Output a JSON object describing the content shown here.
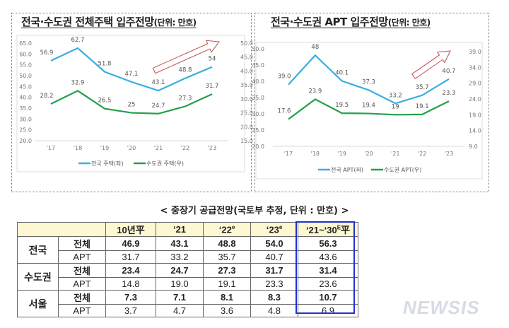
{
  "panels": [
    {
      "title": "전국·수도권 전체주택 입주전망",
      "unit": "(단위: 만호)"
    },
    {
      "title": "전국·수도권 APT 입주전망",
      "unit": "(단위: 만호)"
    }
  ],
  "chart_data": [
    {
      "type": "line",
      "categories": [
        "'17",
        "'18",
        "'19",
        "'20",
        "'21",
        "'22",
        "'23"
      ],
      "left_axis": {
        "ylim": [
          20,
          65
        ],
        "ticks": [
          "65.0",
          "60.0",
          "55.0",
          "50.0",
          "45.0",
          "40.0",
          "35.0",
          "30.0",
          "25.0",
          "20.0"
        ]
      },
      "right_axis": {
        "ylim": [
          15,
          50
        ],
        "ticks": [
          "50.0",
          "45.0",
          "40.0",
          "35.0",
          "30.0",
          "25.0",
          "20.0",
          "15.0"
        ]
      },
      "series": [
        {
          "name": "전국 주택(좌)",
          "axis": "left",
          "color": "#3aaee0",
          "values": [
            56.9,
            62.7,
            51.8,
            47.1,
            43.1,
            48.8,
            54
          ],
          "labels": [
            "56.9",
            "62.7",
            "51.8",
            "47.1",
            "43.1",
            "48.8",
            "54"
          ]
        },
        {
          "name": "수도권 주택(우)",
          "axis": "right",
          "color": "#22a04a",
          "values": [
            28.2,
            32.9,
            26.5,
            25,
            24.7,
            27.3,
            31.7
          ],
          "labels": [
            "28.2",
            "32.9",
            "26.5",
            "25",
            "24.7",
            "27.3",
            "31.7"
          ]
        }
      ],
      "legend": "bottom",
      "grid": false,
      "annotation": "upward-arrow"
    },
    {
      "type": "line",
      "categories": [
        "'17",
        "'18",
        "'19",
        "'20",
        "'21",
        "'22",
        "'23"
      ],
      "left_axis": {
        "ylim": [
          20,
          50
        ],
        "ticks": [
          "50.0",
          "45.0",
          "40.0",
          "35.0",
          "30.0",
          "25.0",
          "20.0"
        ]
      },
      "right_axis": {
        "ylim": [
          9,
          39
        ],
        "ticks": [
          "39.0",
          "34.0",
          "29.0",
          "24.0",
          "19.0",
          "14.0",
          "9.0"
        ]
      },
      "series": [
        {
          "name": "전국 APT(좌)",
          "axis": "left",
          "color": "#3aaee0",
          "values": [
            39.0,
            48,
            40.1,
            37.3,
            33.2,
            35.7,
            40.7
          ],
          "labels": [
            "39.0",
            "48",
            "40.1",
            "37.3",
            "33.2",
            "35.7",
            "40.7"
          ]
        },
        {
          "name": "수도권 APT(우)",
          "axis": "right",
          "color": "#22a04a",
          "values": [
            17.6,
            23.9,
            19.5,
            19.4,
            19,
            19.1,
            23.3
          ],
          "labels": [
            "17.6",
            "23.9",
            "19.5",
            "19.4",
            "19",
            "19.1",
            "23.3"
          ]
        }
      ],
      "legend": "bottom",
      "grid": false,
      "annotation": "upward-arrow"
    }
  ],
  "table": {
    "title": "< 중장기 공급전망(국토부 추정, 단위 : 만호) >",
    "headers": [
      "10년平",
      "‘21",
      "‘22",
      "‘23",
      "‘21~‘30",
      "平"
    ],
    "header_sup": [
      "e",
      "e",
      "E"
    ],
    "groups": [
      {
        "name": "전국",
        "rows": [
          {
            "type": "전체",
            "values": [
              "46.9",
              "43.1",
              "48.8",
              "54.0",
              "56.3"
            ]
          },
          {
            "type": "APT",
            "values": [
              "31.7",
              "33.2",
              "35.7",
              "40.7",
              "43.6"
            ]
          }
        ]
      },
      {
        "name": "수도권",
        "rows": [
          {
            "type": "전체",
            "values": [
              "23.4",
              "24.7",
              "27.3",
              "31.7",
              "31.4"
            ]
          },
          {
            "type": "APT",
            "values": [
              "14.8",
              "19.0",
              "19.1",
              "23.3",
              "23.6"
            ]
          }
        ]
      },
      {
        "name": "서울",
        "rows": [
          {
            "type": "전체",
            "values": [
              "7.3",
              "7.1",
              "8.1",
              "8.3",
              "10.7"
            ]
          },
          {
            "type": "APT",
            "values": [
              "3.7",
              "4.7",
              "3.6",
              "4.8",
              "6.9"
            ]
          }
        ]
      }
    ]
  },
  "watermark": "NEWSIS"
}
